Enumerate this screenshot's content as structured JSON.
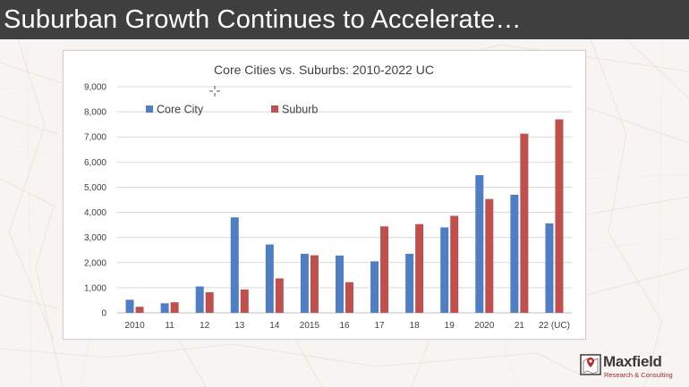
{
  "slide": {
    "title": "Suburban Growth Continues to Accelerate…"
  },
  "logo": {
    "name": "Maxfield",
    "tagline": "Research & Consulting"
  },
  "colors": {
    "title_bar": "#3f3f3f",
    "core_city": "#4f7ec4",
    "suburb": "#c0504d"
  },
  "chart_data": {
    "type": "bar",
    "title": "Core Cities vs. Suburbs: 2010-2022 UC",
    "xlabel": "",
    "ylabel": "",
    "categories": [
      "2010",
      "11",
      "12",
      "13",
      "14",
      "2015",
      "16",
      "17",
      "18",
      "19",
      "2020",
      "21",
      "22 (UC)"
    ],
    "series": [
      {
        "name": "Core City",
        "color": "#4f7ec4",
        "values": [
          520,
          380,
          1050,
          3800,
          2720,
          2350,
          2280,
          2050,
          2350,
          3400,
          5480,
          4700,
          3560
        ]
      },
      {
        "name": "Suburb",
        "color": "#c0504d",
        "values": [
          240,
          420,
          820,
          930,
          1370,
          2290,
          1220,
          3440,
          3530,
          3860,
          4530,
          7130,
          7700
        ]
      }
    ],
    "ylim": [
      0,
      9000
    ],
    "yticks": [
      "0",
      "1,000",
      "2,000",
      "3,000",
      "4,000",
      "5,000",
      "6,000",
      "7,000",
      "8,000",
      "9,000"
    ],
    "ytick_values": [
      0,
      1000,
      2000,
      3000,
      4000,
      5000,
      6000,
      7000,
      8000,
      9000
    ],
    "grid": true,
    "legend": "top-left"
  }
}
